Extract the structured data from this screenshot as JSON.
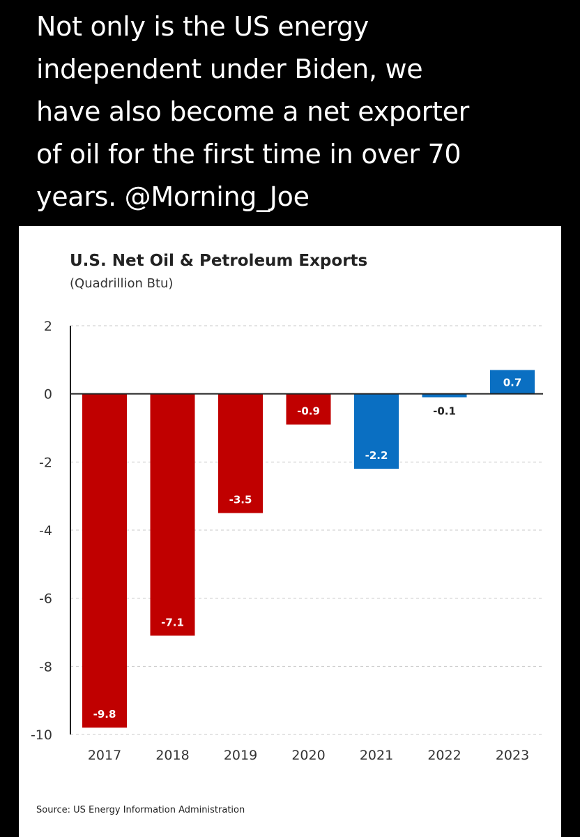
{
  "tweet": {
    "text": "Not only is the US energy\nindependent under Biden, we\nhave also become a net exporter\nof oil for the first time in over 70\nyears. @Morning_Joe"
  },
  "colors": {
    "negative_bar": "#c00000",
    "recent_bar": "#0a6fc2",
    "background": "#000000",
    "card": "#ffffff"
  },
  "chart_data": {
    "type": "bar",
    "title": "U.S. Net Oil & Petroleum Exports",
    "subtitle": "(Quadrillion Btu)",
    "categories": [
      "2017",
      "2018",
      "2019",
      "2020",
      "2021",
      "2022",
      "2023"
    ],
    "values": [
      -9.8,
      -7.1,
      -3.5,
      -0.9,
      -2.2,
      -0.1,
      0.7
    ],
    "value_labels": [
      "-9.8",
      "-7.1",
      "-3.5",
      "-0.9",
      "-2.2",
      "-0.1",
      "0.7"
    ],
    "bar_colors": [
      "#c00000",
      "#c00000",
      "#c00000",
      "#c00000",
      "#0a6fc2",
      "#0a6fc2",
      "#0a6fc2"
    ],
    "yticks": [
      "2",
      "0",
      "-2",
      "-4",
      "-6",
      "-8",
      "-10"
    ],
    "ylim": [
      -10,
      2
    ],
    "grid": true,
    "xlabel": "",
    "ylabel": "",
    "source": "Source: US Energy Information Administration"
  }
}
